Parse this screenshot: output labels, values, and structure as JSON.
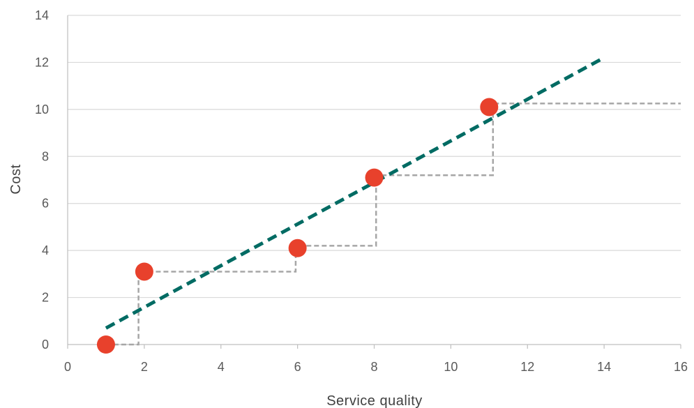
{
  "chart_data": {
    "type": "scatter",
    "title": "",
    "xlabel": "Service quality",
    "ylabel": "Cost",
    "xlim": [
      0,
      16
    ],
    "ylim": [
      0,
      14
    ],
    "xticks": [
      "0",
      "2",
      "4",
      "6",
      "8",
      "10",
      "12",
      "14",
      "16"
    ],
    "yticks": [
      "0",
      "2",
      "4",
      "6",
      "8",
      "10",
      "12",
      "14"
    ],
    "grid": "horizontal",
    "legend": "none",
    "points": [
      {
        "x": 1,
        "y": 0
      },
      {
        "x": 2,
        "y": 3.1
      },
      {
        "x": 6,
        "y": 4.1
      },
      {
        "x": 8,
        "y": 7.1
      },
      {
        "x": 11,
        "y": 10.1
      }
    ],
    "trendline": {
      "from": [
        1,
        0.7
      ],
      "to": [
        14,
        12.2
      ]
    },
    "step_line": [
      [
        1,
        0
      ],
      [
        1.85,
        0
      ],
      [
        1.85,
        3.1
      ],
      [
        5.95,
        3.1
      ],
      [
        5.95,
        4.2
      ],
      [
        8.05,
        4.2
      ],
      [
        8.05,
        7.2
      ],
      [
        11.1,
        7.2
      ],
      [
        11.1,
        10.25
      ],
      [
        16,
        10.25
      ]
    ],
    "colors": {
      "points": "#e8412c",
      "trendline": "#006b63",
      "step_line": "#a6a6a6",
      "grid": "#d9d9d9",
      "axis": "#bfbfbf"
    }
  }
}
